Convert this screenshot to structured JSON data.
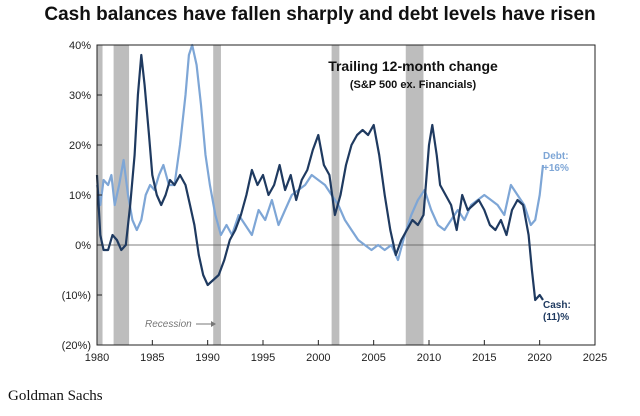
{
  "title": "Cash balances have fallen sharply and debt levels have risen",
  "source": "Goldman Sachs",
  "chart_data": {
    "type": "line",
    "subtitle": "Trailing 12-month change",
    "subtitle2": "(S&P 500 ex. Financials)",
    "xlim": [
      1980,
      2025
    ],
    "ylim": [
      -20,
      40
    ],
    "xticks": [
      "1980",
      "1985",
      "1990",
      "1995",
      "2000",
      "2005",
      "2010",
      "2015",
      "2020",
      "2025"
    ],
    "yticks": [
      "40%",
      "30%",
      "20%",
      "10%",
      "0%",
      "(10%)",
      "(20%)"
    ],
    "recession_label": "Recession",
    "recessions": [
      [
        1980.0,
        1980.5
      ],
      [
        1981.5,
        1982.9
      ],
      [
        1990.5,
        1991.2
      ],
      [
        2001.2,
        2001.9
      ],
      [
        2007.9,
        2009.5
      ]
    ],
    "series": [
      {
        "name": "Cash",
        "end_label": "Cash:",
        "end_value_label": "(11)%",
        "color": "#1f3a60",
        "points": [
          [
            1980.0,
            14
          ],
          [
            1980.3,
            2
          ],
          [
            1980.6,
            -1
          ],
          [
            1981.0,
            -1
          ],
          [
            1981.4,
            2
          ],
          [
            1981.8,
            1
          ],
          [
            1982.2,
            -1
          ],
          [
            1982.6,
            0
          ],
          [
            1983.0,
            8
          ],
          [
            1983.4,
            18
          ],
          [
            1983.7,
            30
          ],
          [
            1984.0,
            38
          ],
          [
            1984.3,
            32
          ],
          [
            1984.7,
            22
          ],
          [
            1985.0,
            14
          ],
          [
            1985.4,
            10
          ],
          [
            1985.8,
            8
          ],
          [
            1986.2,
            10
          ],
          [
            1986.6,
            13
          ],
          [
            1987.0,
            12
          ],
          [
            1987.5,
            14
          ],
          [
            1988.0,
            12
          ],
          [
            1988.4,
            8
          ],
          [
            1988.8,
            4
          ],
          [
            1989.2,
            -2
          ],
          [
            1989.6,
            -6
          ],
          [
            1990.0,
            -8
          ],
          [
            1990.5,
            -7
          ],
          [
            1991.0,
            -6
          ],
          [
            1991.5,
            -3
          ],
          [
            1992.0,
            1
          ],
          [
            1992.5,
            3
          ],
          [
            1993.0,
            6
          ],
          [
            1993.5,
            10
          ],
          [
            1994.0,
            15
          ],
          [
            1994.5,
            12
          ],
          [
            1995.0,
            14
          ],
          [
            1995.5,
            10
          ],
          [
            1996.0,
            12
          ],
          [
            1996.5,
            16
          ],
          [
            1997.0,
            11
          ],
          [
            1997.5,
            14
          ],
          [
            1998.0,
            9
          ],
          [
            1998.5,
            13
          ],
          [
            1999.0,
            15
          ],
          [
            1999.5,
            19
          ],
          [
            2000.0,
            22
          ],
          [
            2000.5,
            16
          ],
          [
            2001.0,
            14
          ],
          [
            2001.5,
            6
          ],
          [
            2002.0,
            10
          ],
          [
            2002.5,
            16
          ],
          [
            2003.0,
            20
          ],
          [
            2003.5,
            22
          ],
          [
            2004.0,
            23
          ],
          [
            2004.5,
            22
          ],
          [
            2005.0,
            24
          ],
          [
            2005.5,
            18
          ],
          [
            2006.0,
            10
          ],
          [
            2006.5,
            3
          ],
          [
            2007.0,
            -2
          ],
          [
            2007.5,
            1
          ],
          [
            2008.0,
            3
          ],
          [
            2008.5,
            5
          ],
          [
            2009.0,
            4
          ],
          [
            2009.5,
            6
          ],
          [
            2010.0,
            20
          ],
          [
            2010.3,
            24
          ],
          [
            2010.7,
            18
          ],
          [
            2011.0,
            12
          ],
          [
            2011.5,
            10
          ],
          [
            2012.0,
            8
          ],
          [
            2012.5,
            3
          ],
          [
            2013.0,
            10
          ],
          [
            2013.5,
            7
          ],
          [
            2014.0,
            8
          ],
          [
            2014.5,
            9
          ],
          [
            2015.0,
            7
          ],
          [
            2015.5,
            4
          ],
          [
            2016.0,
            3
          ],
          [
            2016.5,
            5
          ],
          [
            2017.0,
            2
          ],
          [
            2017.5,
            7
          ],
          [
            2018.0,
            9
          ],
          [
            2018.5,
            8
          ],
          [
            2019.0,
            2
          ],
          [
            2019.3,
            -5
          ],
          [
            2019.6,
            -11
          ],
          [
            2020.0,
            -10
          ],
          [
            2020.3,
            -11
          ]
        ]
      },
      {
        "name": "Debt",
        "end_label": "Debt:",
        "end_value_label": "+16%",
        "color": "#7ea6d6",
        "points": [
          [
            1980.0,
            12
          ],
          [
            1980.3,
            8
          ],
          [
            1980.6,
            13
          ],
          [
            1981.0,
            12
          ],
          [
            1981.3,
            14
          ],
          [
            1981.6,
            8
          ],
          [
            1982.0,
            12
          ],
          [
            1982.4,
            17
          ],
          [
            1982.8,
            10
          ],
          [
            1983.2,
            5
          ],
          [
            1983.6,
            3
          ],
          [
            1984.0,
            5
          ],
          [
            1984.4,
            10
          ],
          [
            1984.8,
            12
          ],
          [
            1985.2,
            11
          ],
          [
            1985.6,
            14
          ],
          [
            1986.0,
            16
          ],
          [
            1986.5,
            12
          ],
          [
            1987.0,
            12
          ],
          [
            1987.5,
            20
          ],
          [
            1988.0,
            30
          ],
          [
            1988.3,
            38
          ],
          [
            1988.6,
            40
          ],
          [
            1989.0,
            36
          ],
          [
            1989.4,
            28
          ],
          [
            1989.8,
            18
          ],
          [
            1990.2,
            12
          ],
          [
            1990.7,
            6
          ],
          [
            1991.2,
            2
          ],
          [
            1991.7,
            4
          ],
          [
            1992.2,
            2
          ],
          [
            1992.8,
            6
          ],
          [
            1993.4,
            4
          ],
          [
            1994.0,
            2
          ],
          [
            1994.6,
            7
          ],
          [
            1995.2,
            5
          ],
          [
            1995.8,
            9
          ],
          [
            1996.4,
            4
          ],
          [
            1997.0,
            7
          ],
          [
            1997.6,
            10
          ],
          [
            1998.2,
            11
          ],
          [
            1998.8,
            12
          ],
          [
            1999.4,
            14
          ],
          [
            2000.0,
            13
          ],
          [
            2000.6,
            12
          ],
          [
            2001.2,
            10
          ],
          [
            2001.8,
            8
          ],
          [
            2002.4,
            5
          ],
          [
            2003.0,
            3
          ],
          [
            2003.6,
            1
          ],
          [
            2004.2,
            0
          ],
          [
            2004.8,
            -1
          ],
          [
            2005.4,
            0
          ],
          [
            2006.0,
            -1
          ],
          [
            2006.6,
            0
          ],
          [
            2007.2,
            -3
          ],
          [
            2007.8,
            2
          ],
          [
            2008.4,
            6
          ],
          [
            2009.0,
            9
          ],
          [
            2009.6,
            11
          ],
          [
            2010.2,
            7
          ],
          [
            2010.8,
            4
          ],
          [
            2011.4,
            3
          ],
          [
            2012.0,
            5
          ],
          [
            2012.6,
            7
          ],
          [
            2013.2,
            5
          ],
          [
            2013.8,
            8
          ],
          [
            2014.4,
            9
          ],
          [
            2015.0,
            10
          ],
          [
            2015.6,
            9
          ],
          [
            2016.2,
            8
          ],
          [
            2016.8,
            6
          ],
          [
            2017.4,
            12
          ],
          [
            2018.0,
            10
          ],
          [
            2018.6,
            8
          ],
          [
            2019.2,
            4
          ],
          [
            2019.6,
            5
          ],
          [
            2020.0,
            10
          ],
          [
            2020.3,
            16
          ]
        ]
      }
    ]
  }
}
